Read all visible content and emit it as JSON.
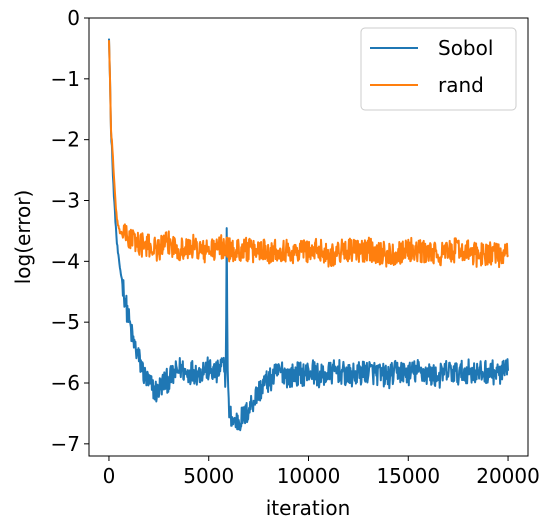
{
  "chart_data": {
    "type": "line",
    "xlabel": "iteration",
    "ylabel": "log(error)",
    "xlim": [
      -1000,
      21000
    ],
    "ylim": [
      -7.2,
      0
    ],
    "x_ticks": [
      0,
      5000,
      10000,
      15000,
      20000
    ],
    "x_tick_labels": [
      "0",
      "5000",
      "10000",
      "15000",
      "20000"
    ],
    "y_ticks": [
      0,
      -1,
      -2,
      -3,
      -4,
      -5,
      -6,
      -7
    ],
    "y_tick_labels": [
      "0",
      "−1",
      "−2",
      "−3",
      "−4",
      "−5",
      "−6",
      "−7"
    ],
    "grid": false,
    "legend_position": "top-right",
    "series": [
      {
        "name": "Sobol",
        "color": "#1f77b4",
        "x": [
          0,
          50,
          100,
          150,
          200,
          300,
          400,
          500,
          700,
          900,
          1200,
          1500,
          1800,
          2100,
          2400,
          2700,
          3000,
          3300,
          3600,
          3900,
          4200,
          4500,
          4800,
          5100,
          5400,
          5700,
          5850,
          5900,
          5950,
          6000,
          6100,
          6300,
          6600,
          6900,
          7200,
          7500,
          7800,
          8100,
          8400,
          8700,
          9000,
          9400,
          9800,
          10200,
          10600,
          11000,
          11500,
          12000,
          12500,
          13000,
          13500,
          14000,
          14500,
          15000,
          15500,
          16000,
          16500,
          17000,
          17500,
          18000,
          18500,
          19000,
          19500,
          20000
        ],
        "y": [
          -0.3,
          -1.0,
          -1.9,
          -2.1,
          -2.6,
          -3.2,
          -3.7,
          -4.0,
          -4.4,
          -4.8,
          -5.3,
          -5.6,
          -5.9,
          -6.05,
          -6.15,
          -6.0,
          -5.95,
          -5.85,
          -5.75,
          -5.85,
          -5.8,
          -5.85,
          -5.75,
          -5.8,
          -5.85,
          -5.7,
          -5.9,
          -3.6,
          -5.8,
          -6.4,
          -6.55,
          -6.65,
          -6.6,
          -6.5,
          -6.3,
          -6.15,
          -6.0,
          -5.95,
          -5.85,
          -5.8,
          -5.9,
          -5.85,
          -5.85,
          -5.8,
          -5.9,
          -5.85,
          -5.8,
          -5.9,
          -5.85,
          -5.8,
          -5.85,
          -5.9,
          -5.8,
          -5.85,
          -5.8,
          -5.85,
          -5.9,
          -5.8,
          -5.85,
          -5.8,
          -5.85,
          -5.8,
          -5.85,
          -5.8
        ]
      },
      {
        "name": "rand",
        "color": "#ff7f0e",
        "x": [
          0,
          50,
          100,
          150,
          200,
          300,
          400,
          500,
          700,
          900,
          1200,
          1500,
          1800,
          2100,
          2400,
          2700,
          3000,
          3300,
          3600,
          3900,
          4200,
          4500,
          4800,
          5100,
          5400,
          5700,
          6000,
          6300,
          6600,
          6900,
          7200,
          7500,
          7800,
          8100,
          8400,
          8700,
          9000,
          9400,
          9800,
          10200,
          10600,
          11000,
          11500,
          12000,
          12500,
          13000,
          13500,
          14000,
          14500,
          15000,
          15500,
          16000,
          16500,
          17000,
          17500,
          18000,
          18500,
          19000,
          19500,
          20000
        ],
        "y": [
          -0.35,
          -1.0,
          -1.85,
          -2.0,
          -2.3,
          -2.9,
          -3.3,
          -3.5,
          -3.55,
          -3.6,
          -3.65,
          -3.7,
          -3.75,
          -3.75,
          -3.8,
          -3.75,
          -3.7,
          -3.75,
          -3.8,
          -3.8,
          -3.75,
          -3.8,
          -3.85,
          -3.8,
          -3.8,
          -3.75,
          -3.8,
          -3.85,
          -3.8,
          -3.8,
          -3.85,
          -3.8,
          -3.8,
          -3.85,
          -3.8,
          -3.8,
          -3.85,
          -3.85,
          -3.8,
          -3.85,
          -3.8,
          -3.9,
          -3.85,
          -3.8,
          -3.85,
          -3.8,
          -3.85,
          -3.9,
          -3.85,
          -3.8,
          -3.85,
          -3.85,
          -3.9,
          -3.85,
          -3.8,
          -3.85,
          -3.9,
          -3.85,
          -3.9,
          -3.9
        ]
      }
    ]
  }
}
